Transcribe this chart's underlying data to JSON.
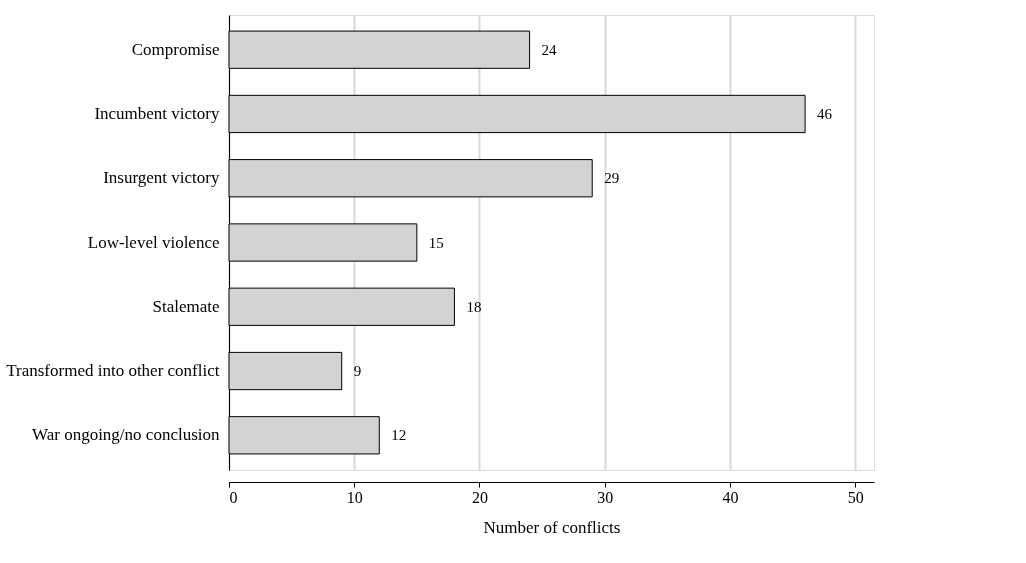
{
  "chart_data": {
    "type": "bar",
    "orientation": "horizontal",
    "xlabel": "Number of conflicts",
    "categories": [
      "Compromise",
      "Incumbent victory",
      "Insurgent victory",
      "Low-level violence",
      "Stalemate",
      "Transformed into other conflict",
      "War ongoing/no conclusion"
    ],
    "values": [
      24,
      46,
      29,
      15,
      18,
      9,
      12
    ],
    "color": "#d3d3d3",
    "xlim": [
      0,
      51.5
    ],
    "xticks": [
      0,
      10,
      20,
      30,
      40,
      50
    ],
    "grid": "x",
    "data_labels": true
  }
}
